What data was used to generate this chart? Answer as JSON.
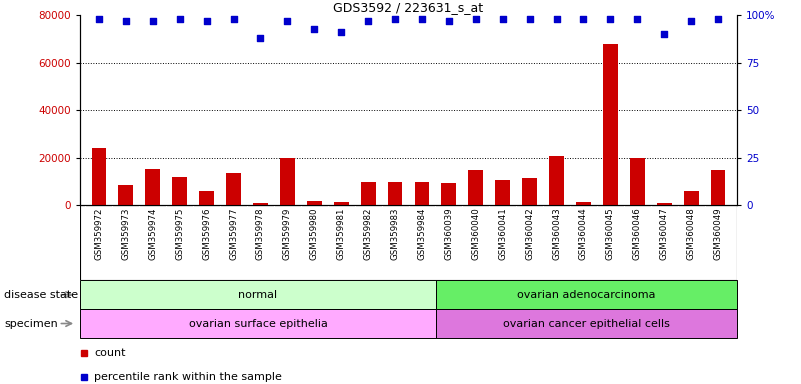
{
  "title": "GDS3592 / 223631_s_at",
  "categories": [
    "GSM359972",
    "GSM359973",
    "GSM359974",
    "GSM359975",
    "GSM359976",
    "GSM359977",
    "GSM359978",
    "GSM359979",
    "GSM359980",
    "GSM359981",
    "GSM359982",
    "GSM359983",
    "GSM359984",
    "GSM360039",
    "GSM360040",
    "GSM360041",
    "GSM360042",
    "GSM360043",
    "GSM360044",
    "GSM360045",
    "GSM360046",
    "GSM360047",
    "GSM360048",
    "GSM360049"
  ],
  "bar_values": [
    24000,
    8500,
    15500,
    12000,
    6000,
    13500,
    900,
    20000,
    2000,
    1500,
    10000,
    10000,
    10000,
    9500,
    15000,
    10500,
    11500,
    21000,
    1500,
    68000,
    20000,
    1000,
    6000,
    15000
  ],
  "scatter_values": [
    98,
    97,
    97,
    98,
    97,
    98,
    88,
    97,
    93,
    91,
    97,
    98,
    98,
    97,
    98,
    98,
    98,
    98,
    98,
    98,
    98,
    90,
    97,
    98
  ],
  "bar_color": "#cc0000",
  "scatter_color": "#0000cc",
  "left_ylim": [
    0,
    80000
  ],
  "right_ylim": [
    0,
    100
  ],
  "left_yticks": [
    0,
    20000,
    40000,
    60000,
    80000
  ],
  "right_yticks": [
    0,
    25,
    50,
    75,
    100
  ],
  "right_yticklabels": [
    "0",
    "25",
    "50",
    "75",
    "100%"
  ],
  "grid_values": [
    20000,
    40000,
    60000
  ],
  "disease_state_groups": [
    {
      "label": "normal",
      "start": 0,
      "end": 13,
      "color": "#ccffcc"
    },
    {
      "label": "ovarian adenocarcinoma",
      "start": 13,
      "end": 24,
      "color": "#66ee66"
    }
  ],
  "specimen_groups": [
    {
      "label": "ovarian surface epithelia",
      "start": 0,
      "end": 13,
      "color": "#ffaaff"
    },
    {
      "label": "ovarian cancer epithelial cells",
      "start": 13,
      "end": 24,
      "color": "#dd77dd"
    }
  ],
  "disease_state_label": "disease state",
  "specimen_label": "specimen",
  "legend_items": [
    {
      "label": "count",
      "color": "#cc0000"
    },
    {
      "label": "percentile rank within the sample",
      "color": "#0000cc"
    }
  ],
  "background_color": "#ffffff",
  "plot_bg_color": "#ffffff"
}
